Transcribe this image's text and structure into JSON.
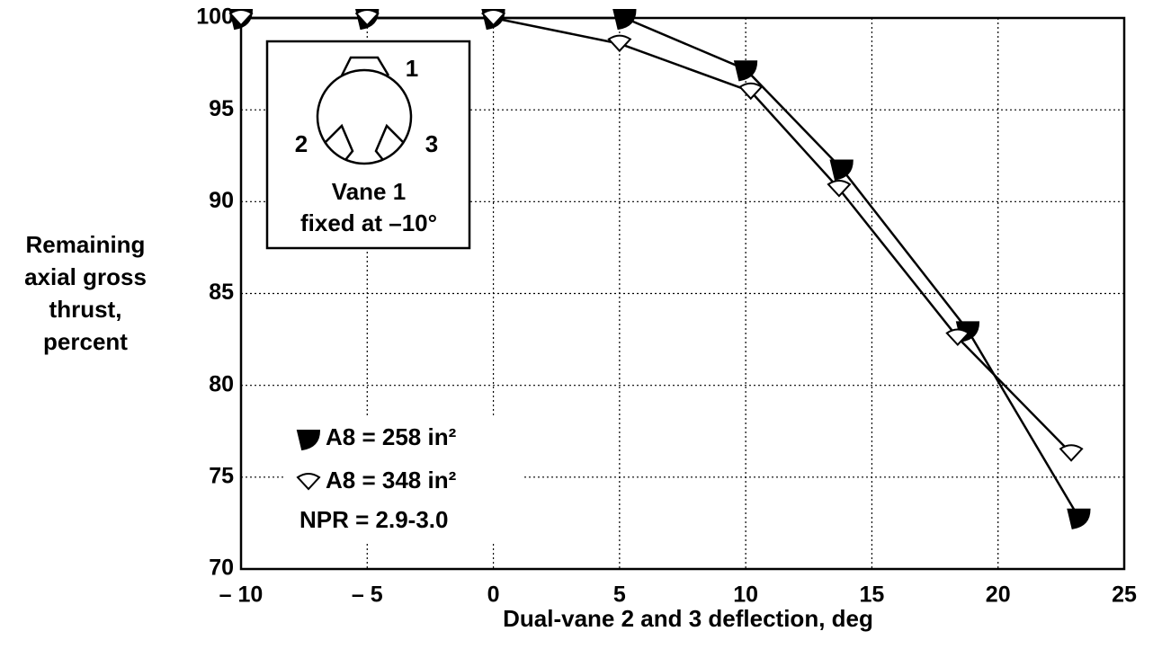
{
  "chart_data": {
    "type": "line",
    "xlabel": "Dual-vane 2 and 3 deflection, deg",
    "ylabel": [
      "Remaining",
      "axial gross",
      "thrust,",
      "percent"
    ],
    "series": [
      {
        "name": "A8 = 258 in²",
        "color": "#000000",
        "marker": "filled",
        "x": [
          -10,
          -5,
          0,
          5.2,
          10,
          13.8,
          18.8,
          23.2
        ],
        "values": [
          100,
          100,
          100,
          100,
          97.2,
          91.8,
          83,
          72.8
        ]
      },
      {
        "name": "A8 = 348 in²",
        "color": "#000000",
        "marker": "open",
        "x": [
          -10,
          -5,
          0,
          5,
          10.2,
          13.7,
          18.4,
          22.9
        ],
        "values": [
          100,
          100,
          100,
          98.6,
          96,
          90.7,
          82.6,
          76.3
        ]
      }
    ],
    "annotation": "NPR = 2.9-3.0",
    "inset": {
      "vanes": [
        "1",
        "2",
        "3"
      ],
      "caption": [
        "Vane 1",
        "fixed at –10°"
      ]
    },
    "xlim": [
      -10,
      25
    ],
    "xticks": [
      {
        "value": -10,
        "label": "– 10"
      },
      {
        "value": -5,
        "label": "– 5"
      },
      0,
      5,
      10,
      15,
      20,
      25
    ],
    "ylim": [
      70,
      100
    ],
    "yticks": [
      70,
      75,
      80,
      85,
      90,
      95,
      100
    ],
    "grid": true
  }
}
